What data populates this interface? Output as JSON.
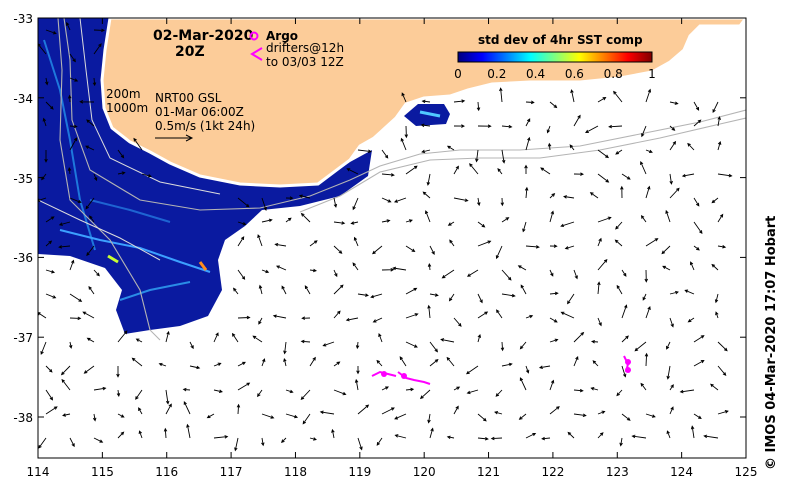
{
  "map": {
    "date": "02-Mar-2020",
    "hour": "20Z",
    "legend_argo": "Argo",
    "legend_drifters_1": "drifters@12h",
    "legend_drifters_2": "to 03/03 12Z",
    "depth_200": "200m",
    "depth_1000": "1000m",
    "product": "NRT00 GSL",
    "product_time": "01-Mar 06:00Z",
    "scale_label": "0.5m/s (1kt 24h)",
    "colorbar_title": "std dev of 4hr SST comp",
    "colorbar_ticks": [
      "0",
      "0.2",
      "0.4",
      "0.6",
      "0.8",
      "1"
    ],
    "credit": "© IMOS 04-Mar-2020 17:07 Hobart",
    "lon_ticks": [
      "114",
      "115",
      "116",
      "117",
      "118",
      "119",
      "120",
      "121",
      "122",
      "123",
      "124",
      "125"
    ],
    "lat_ticks": [
      "-33",
      "-34",
      "-35",
      "-36",
      "-37",
      "-38"
    ],
    "colors": {
      "land": "#fccc99",
      "sst_low": "#0a1aa0",
      "argo": "#ff00ff",
      "drifter": "#ff00ff",
      "arrow": "#000000",
      "isobath": "#b4b4b4"
    }
  }
}
